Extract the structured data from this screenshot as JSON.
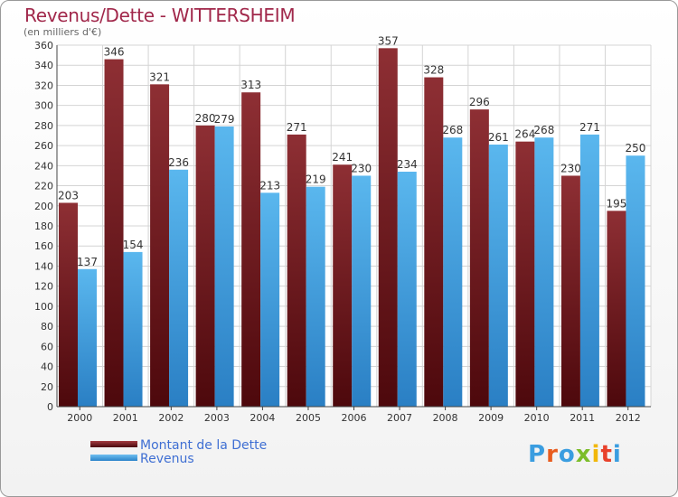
{
  "title": "Revenus/Dette - WITTERSHEIM",
  "subtitle": "(en milliers d'€)",
  "logo": {
    "text": "Proxiti",
    "letter_colors": [
      "#3a9de0",
      "#e85c1f",
      "#3a9de0",
      "#7cbd2a",
      "#f1b70a",
      "#e8412b",
      "#3a9de0"
    ]
  },
  "colors": {
    "dette": "#7a1d21",
    "revenus": "#3d9ee3",
    "grid": "#d4d4d4",
    "axis": "#444444"
  },
  "chart_data": {
    "type": "bar",
    "categories": [
      "2000",
      "2001",
      "2002",
      "2003",
      "2004",
      "2005",
      "2006",
      "2007",
      "2008",
      "2009",
      "2010",
      "2011",
      "2012"
    ],
    "series": [
      {
        "name": "Montant de la Dette",
        "values": [
          203,
          346,
          321,
          280,
          313,
          271,
          241,
          357,
          328,
          296,
          264,
          230,
          195
        ]
      },
      {
        "name": "Revenus",
        "values": [
          137,
          154,
          236,
          279,
          213,
          219,
          230,
          234,
          268,
          261,
          268,
          271,
          250
        ]
      }
    ],
    "ylim": [
      0,
      360
    ],
    "ytick_step": 20,
    "grid": true,
    "legend_position": "bottom-left"
  }
}
